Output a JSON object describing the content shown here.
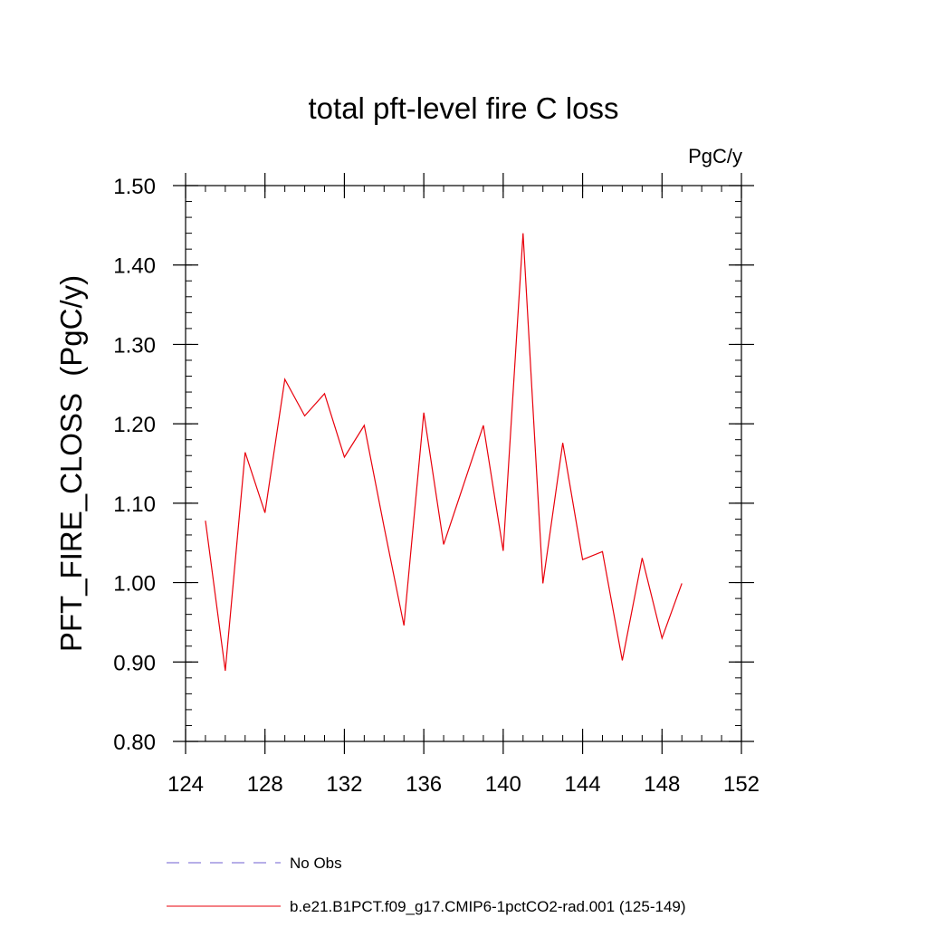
{
  "chart_data": {
    "type": "line",
    "title": "total pft-level fire C loss",
    "units_label": "PgC/y",
    "ylabel": "PFT_FIRE_CLOSS  (PgC/y)",
    "xlabel": "",
    "xlim": [
      124,
      152
    ],
    "ylim": [
      0.8,
      1.5
    ],
    "x_ticks": [
      124,
      128,
      132,
      136,
      140,
      144,
      148,
      152
    ],
    "x_tick_labels": [
      "124",
      "128",
      "132",
      "136",
      "140",
      "144",
      "148",
      "152"
    ],
    "x_minor_step": 1,
    "y_ticks": [
      0.8,
      0.9,
      1.0,
      1.1,
      1.2,
      1.3,
      1.4,
      1.5
    ],
    "y_tick_labels": [
      "0.80",
      "0.90",
      "1.00",
      "1.10",
      "1.20",
      "1.30",
      "1.40",
      "1.50"
    ],
    "y_minor_step": 0.02,
    "grid": false,
    "legend_position": "bottom",
    "series": [
      {
        "name": "b.e21.B1PCT.f09_g17.CMIP6-1pctCO2-rad.001 (125-149)",
        "color": "#e8000b",
        "dash": "solid",
        "x": [
          125,
          126,
          127,
          128,
          129,
          130,
          131,
          132,
          133,
          134,
          135,
          136,
          137,
          138,
          139,
          140,
          141,
          142,
          143,
          144,
          145,
          146,
          147,
          148,
          149
        ],
        "y": [
          1.078,
          0.889,
          1.164,
          1.088,
          1.256,
          1.21,
          1.238,
          1.158,
          1.198,
          1.07,
          0.946,
          1.214,
          1.048,
          1.123,
          1.198,
          1.04,
          1.44,
          0.999,
          1.176,
          1.029,
          1.039,
          0.902,
          1.031,
          0.93,
          0.999
        ]
      }
    ],
    "legend": [
      {
        "label": "No Obs",
        "color": "#6f5fd0",
        "dash": "dashed"
      },
      {
        "label": "b.e21.B1PCT.f09_g17.CMIP6-1pctCO2-rad.001 (125-149)",
        "color": "#e8000b",
        "dash": "solid"
      }
    ]
  }
}
